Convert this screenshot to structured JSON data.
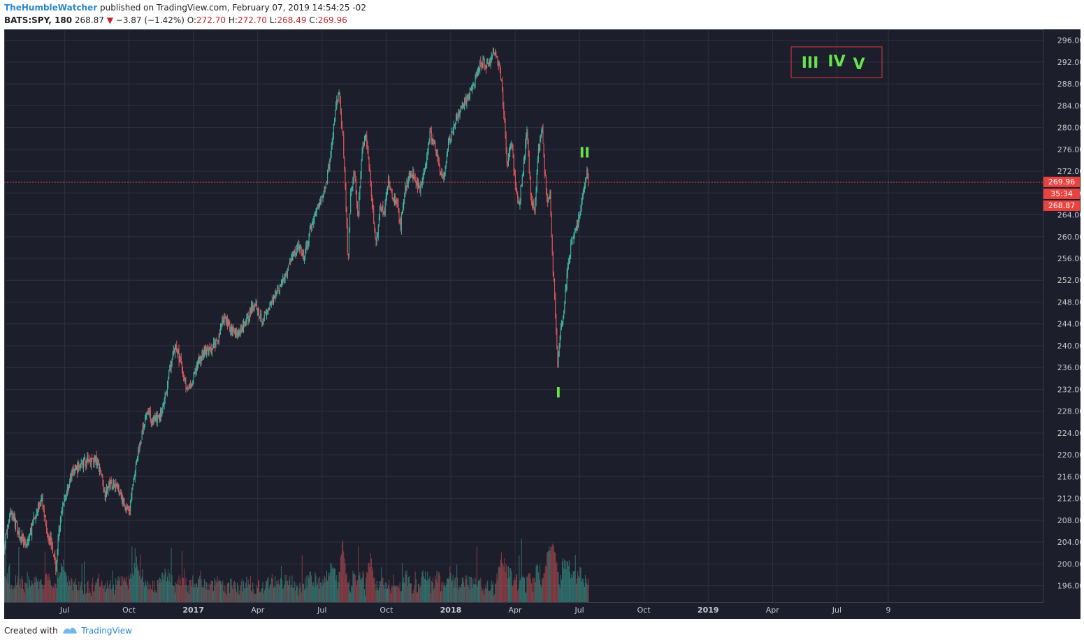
{
  "header": {
    "author": "TheHumbleWatcher",
    "published_text": "published on TradingView.com, February 07, 2019 14:54:25 -02",
    "symbol": "BATS:SPY, 180",
    "last": "268.87",
    "change": "−3.87 (−1.42%)",
    "open_label": "O:",
    "open": "272.70",
    "high_label": "H:",
    "high": "272.70",
    "low_label": "L:",
    "low": "268.49",
    "close_label": "C:",
    "close": "269.96"
  },
  "footer": {
    "created_with": "Created with",
    "brand": "TradingView"
  },
  "colors": {
    "background": "#1d1e2b",
    "grid": "#2e3042",
    "up": "#3fb5a3",
    "down": "#e0565a",
    "label_green": "#66e34d",
    "price_line": "#e84a4a",
    "axis_text": "#c8c9cf"
  },
  "chart_data": {
    "type": "candlestick",
    "symbol": "BATS:SPY",
    "interval": "180",
    "ylim": [
      193,
      298
    ],
    "y_ticks": [
      "196.00",
      "200.00",
      "204.00",
      "208.00",
      "212.00",
      "216.00",
      "220.00",
      "224.00",
      "228.00",
      "232.00",
      "236.00",
      "240.00",
      "244.00",
      "248.00",
      "252.00",
      "256.00",
      "260.00",
      "264.00",
      "268.00",
      "272.00",
      "276.00",
      "280.00",
      "284.00",
      "288.00",
      "292.00",
      "296.00"
    ],
    "x_ticks": [
      {
        "label": "Jul",
        "t": 0.08,
        "bold": false
      },
      {
        "label": "Oct",
        "t": 0.33,
        "bold": false
      },
      {
        "label": "2017",
        "t": 0.58,
        "bold": true
      },
      {
        "label": "Apr",
        "t": 0.83,
        "bold": false
      },
      {
        "label": "Jul",
        "t": 1.08,
        "bold": false
      },
      {
        "label": "Oct",
        "t": 1.33,
        "bold": false
      },
      {
        "label": "2018",
        "t": 1.58,
        "bold": true
      },
      {
        "label": "Apr",
        "t": 1.83,
        "bold": false
      },
      {
        "label": "Jul",
        "t": 2.08,
        "bold": false
      },
      {
        "label": "Oct",
        "t": 2.33,
        "bold": false
      },
      {
        "label": "2019",
        "t": 2.58,
        "bold": true
      },
      {
        "label": "Apr",
        "t": 2.83,
        "bold": false
      },
      {
        "label": "Jul",
        "t": 3.08,
        "bold": false
      },
      {
        "label": "9",
        "t": 3.28,
        "bold": false
      }
    ],
    "t_range": [
      -0.155,
      3.88
    ],
    "price_path": [
      [
        -0.155,
        203
      ],
      [
        -0.13,
        210
      ],
      [
        -0.1,
        206
      ],
      [
        -0.07,
        203
      ],
      [
        -0.04,
        208
      ],
      [
        -0.01,
        212
      ],
      [
        0.01,
        206
      ],
      [
        0.03,
        204
      ],
      [
        0.045,
        199
      ],
      [
        0.06,
        207
      ],
      [
        0.085,
        213
      ],
      [
        0.11,
        217
      ],
      [
        0.14,
        218
      ],
      [
        0.17,
        219
      ],
      [
        0.2,
        219
      ],
      [
        0.22,
        217
      ],
      [
        0.235,
        213
      ],
      [
        0.26,
        215
      ],
      [
        0.29,
        214
      ],
      [
        0.31,
        211
      ],
      [
        0.33,
        209
      ],
      [
        0.345,
        215
      ],
      [
        0.36,
        219
      ],
      [
        0.38,
        224
      ],
      [
        0.4,
        228
      ],
      [
        0.43,
        226
      ],
      [
        0.46,
        228
      ],
      [
        0.49,
        236
      ],
      [
        0.51,
        240
      ],
      [
        0.53,
        237
      ],
      [
        0.55,
        233
      ],
      [
        0.57,
        232
      ],
      [
        0.59,
        236
      ],
      [
        0.62,
        239
      ],
      [
        0.65,
        239
      ],
      [
        0.68,
        242
      ],
      [
        0.7,
        245
      ],
      [
        0.73,
        243
      ],
      [
        0.76,
        242
      ],
      [
        0.79,
        245
      ],
      [
        0.82,
        248
      ],
      [
        0.845,
        245
      ],
      [
        0.87,
        246
      ],
      [
        0.9,
        250
      ],
      [
        0.93,
        252
      ],
      [
        0.96,
        256
      ],
      [
        0.99,
        258
      ],
      [
        1.01,
        256
      ],
      [
        1.03,
        260
      ],
      [
        1.05,
        264
      ],
      [
        1.07,
        266
      ],
      [
        1.085,
        268
      ],
      [
        1.1,
        271
      ],
      [
        1.12,
        277
      ],
      [
        1.13,
        283
      ],
      [
        1.145,
        286
      ],
      [
        1.16,
        279
      ],
      [
        1.175,
        264
      ],
      [
        1.18,
        254
      ],
      [
        1.19,
        268
      ],
      [
        1.205,
        272
      ],
      [
        1.22,
        264
      ],
      [
        1.235,
        276
      ],
      [
        1.25,
        279
      ],
      [
        1.265,
        272
      ],
      [
        1.28,
        263
      ],
      [
        1.29,
        258
      ],
      [
        1.305,
        266
      ],
      [
        1.32,
        264
      ],
      [
        1.335,
        270
      ],
      [
        1.35,
        268
      ],
      [
        1.37,
        266
      ],
      [
        1.385,
        262
      ],
      [
        1.4,
        268
      ],
      [
        1.42,
        272
      ],
      [
        1.44,
        271
      ],
      [
        1.46,
        268
      ],
      [
        1.48,
        273
      ],
      [
        1.5,
        279
      ],
      [
        1.52,
        276
      ],
      [
        1.54,
        272
      ],
      [
        1.555,
        270
      ],
      [
        1.57,
        277
      ],
      [
        1.59,
        280
      ],
      [
        1.61,
        282
      ],
      [
        1.63,
        284
      ],
      [
        1.65,
        286
      ],
      [
        1.67,
        288
      ],
      [
        1.69,
        291
      ],
      [
        1.71,
        292
      ],
      [
        1.73,
        291
      ],
      [
        1.745,
        294
      ],
      [
        1.76,
        293
      ],
      [
        1.775,
        289
      ],
      [
        1.79,
        280
      ],
      [
        1.8,
        272
      ],
      [
        1.815,
        278
      ],
      [
        1.83,
        270
      ],
      [
        1.845,
        265
      ],
      [
        1.86,
        272
      ],
      [
        1.875,
        280
      ],
      [
        1.89,
        268
      ],
      [
        1.905,
        264
      ],
      [
        1.92,
        276
      ],
      [
        1.935,
        279
      ],
      [
        1.945,
        272
      ],
      [
        1.955,
        266
      ],
      [
        1.965,
        268
      ],
      [
        1.975,
        256
      ],
      [
        1.985,
        248
      ],
      [
        1.995,
        236
      ],
      [
        2.005,
        242
      ],
      [
        2.015,
        245
      ],
      [
        2.03,
        252
      ],
      [
        2.045,
        258
      ],
      [
        2.06,
        261
      ],
      [
        2.075,
        263
      ],
      [
        2.09,
        266
      ],
      [
        2.1,
        270
      ],
      [
        2.11,
        272
      ],
      [
        2.115,
        270
      ]
    ],
    "last_price": 269.96,
    "price_labels": [
      "269.96",
      "35:34",
      "268.87"
    ],
    "wave_labels": [
      {
        "text": "I",
        "t": 1.998,
        "price": 230.5
      },
      {
        "text": "II",
        "t": 2.1,
        "price": 274.5
      }
    ],
    "legend_box": {
      "texts": [
        "III",
        "IV",
        "V"
      ]
    }
  }
}
